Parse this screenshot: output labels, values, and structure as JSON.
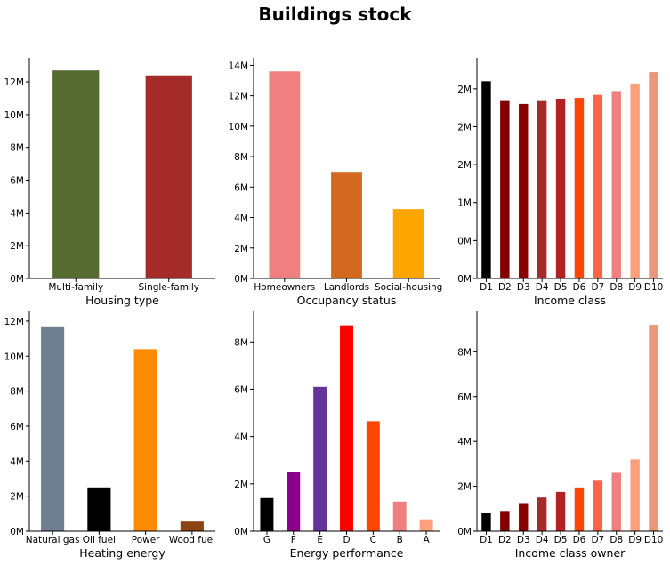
{
  "title": "Buildings stock",
  "chart_data": [
    {
      "type": "bar",
      "xlabel": "Housing type",
      "ylabel": "",
      "categories": [
        "Multi-family",
        "Single-family"
      ],
      "values": [
        12.7,
        12.4
      ],
      "colors": [
        "#556b2f",
        "#a52a2a"
      ],
      "ylim": [
        0,
        13.2
      ],
      "yticks": [
        0,
        2,
        4,
        6,
        8,
        10,
        12
      ],
      "ytick_labels": [
        "0M",
        "2M",
        "4M",
        "6M",
        "8M",
        "10M",
        "12M"
      ]
    },
    {
      "type": "bar",
      "xlabel": "Occupancy status",
      "ylabel": "",
      "categories": [
        "Homeowners",
        "Landlords",
        "Social-housing"
      ],
      "values": [
        13.6,
        7.0,
        4.55
      ],
      "colors": [
        "#f08080",
        "#d2691e",
        "#ffa500"
      ],
      "ylim": [
        0,
        14.2
      ],
      "yticks": [
        0,
        2,
        4,
        6,
        8,
        10,
        12,
        14
      ],
      "ytick_labels": [
        "0M",
        "2M",
        "4M",
        "6M",
        "8M",
        "10M",
        "12M",
        "14M"
      ]
    },
    {
      "type": "bar",
      "xlabel": "Income class",
      "ylabel": "",
      "categories": [
        "D1",
        "D2",
        "D3",
        "D4",
        "D5",
        "D6",
        "D7",
        "D8",
        "D9",
        "D10"
      ],
      "values": [
        2.6,
        2.35,
        2.3,
        2.35,
        2.37,
        2.38,
        2.42,
        2.47,
        2.57,
        2.72
      ],
      "colors": [
        "#000000",
        "#800000",
        "#8b0000",
        "#a52a2a",
        "#b22222",
        "#ff4500",
        "#ff6347",
        "#f08080",
        "#ffa07a",
        "#e9967a"
      ],
      "ylim": [
        0,
        2.85
      ],
      "yticks": [
        0,
        0.5,
        1,
        1.5,
        2,
        2.5
      ],
      "ytick_labels": [
        "0M",
        "0M",
        "1M",
        "2M",
        "2M",
        "2M"
      ]
    },
    {
      "type": "bar",
      "xlabel": "Heating energy",
      "ylabel": "",
      "categories": [
        "Natural gas",
        "Oil fuel",
        "Power",
        "Wood fuel"
      ],
      "values": [
        11.7,
        2.5,
        10.4,
        0.55
      ],
      "colors": [
        "#708090",
        "#000000",
        "#ff8c00",
        "#8b4513"
      ],
      "ylim": [
        0,
        12.3
      ],
      "yticks": [
        0,
        2,
        4,
        6,
        8,
        10,
        12
      ],
      "ytick_labels": [
        "0M",
        "2M",
        "4M",
        "6M",
        "8M",
        "10M",
        "12M"
      ]
    },
    {
      "type": "bar",
      "xlabel": "Energy performance",
      "ylabel": "",
      "categories": [
        "G",
        "F",
        "E",
        "D",
        "C",
        "B",
        "A"
      ],
      "values": [
        1.4,
        2.5,
        6.1,
        8.7,
        4.65,
        1.25,
        0.5
      ],
      "colors": [
        "#000000",
        "#8b008b",
        "#663399",
        "#ff0000",
        "#ff4500",
        "#f08080",
        "#ffa07a"
      ],
      "ylim": [
        0,
        9.1
      ],
      "yticks": [
        0,
        2,
        4,
        6,
        8
      ],
      "ytick_labels": [
        "0M",
        "2M",
        "4M",
        "6M",
        "8M"
      ]
    },
    {
      "type": "bar",
      "xlabel": "Income class owner",
      "ylabel": "",
      "categories": [
        "D1",
        "D2",
        "D3",
        "D4",
        "D5",
        "D6",
        "D7",
        "D8",
        "D9",
        "D10"
      ],
      "values": [
        0.8,
        0.9,
        1.25,
        1.5,
        1.75,
        1.95,
        2.25,
        2.6,
        3.2,
        9.2
      ],
      "colors": [
        "#000000",
        "#800000",
        "#8b0000",
        "#a52a2a",
        "#b22222",
        "#ff4500",
        "#ff6347",
        "#f08080",
        "#ffa07a",
        "#e9967a"
      ],
      "ylim": [
        0,
        9.6
      ],
      "yticks": [
        0,
        2,
        4,
        6,
        8
      ],
      "ytick_labels": [
        "0M",
        "2M",
        "4M",
        "6M",
        "8M"
      ]
    }
  ]
}
